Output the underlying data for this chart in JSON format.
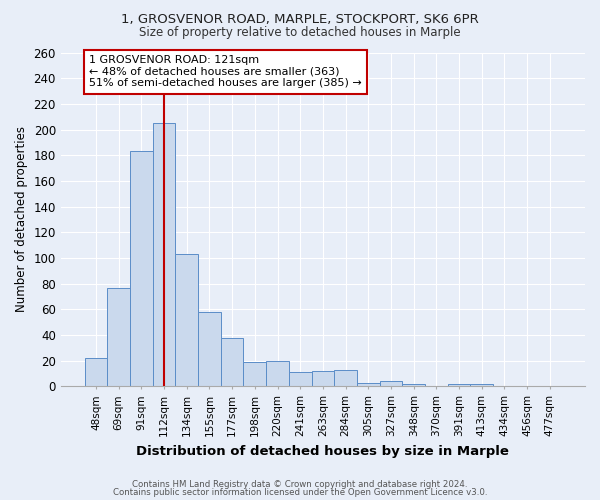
{
  "title_line1": "1, GROSVENOR ROAD, MARPLE, STOCKPORT, SK6 6PR",
  "title_line2": "Size of property relative to detached houses in Marple",
  "xlabel": "Distribution of detached houses by size in Marple",
  "ylabel": "Number of detached properties",
  "categories": [
    "48sqm",
    "69sqm",
    "91sqm",
    "112sqm",
    "134sqm",
    "155sqm",
    "177sqm",
    "198sqm",
    "220sqm",
    "241sqm",
    "263sqm",
    "284sqm",
    "305sqm",
    "327sqm",
    "348sqm",
    "370sqm",
    "391sqm",
    "413sqm",
    "434sqm",
    "456sqm",
    "477sqm"
  ],
  "values": [
    22,
    77,
    183,
    205,
    103,
    58,
    38,
    19,
    20,
    11,
    12,
    13,
    3,
    4,
    2,
    0,
    2,
    2,
    0,
    0,
    0
  ],
  "bar_color": "#cad9ed",
  "bar_edge_color": "#5b8dc8",
  "vline_x": 3,
  "vline_color": "#c00000",
  "annotation_text_line1": "1 GROSVENOR ROAD: 121sqm",
  "annotation_text_line2": "← 48% of detached houses are smaller (363)",
  "annotation_text_line3": "51% of semi-detached houses are larger (385) →",
  "annotation_box_edge_color": "#c00000",
  "annotation_box_bg": "#ffffff",
  "ylim": [
    0,
    260
  ],
  "yticks": [
    0,
    20,
    40,
    60,
    80,
    100,
    120,
    140,
    160,
    180,
    200,
    220,
    240,
    260
  ],
  "footer_line1": "Contains HM Land Registry data © Crown copyright and database right 2024.",
  "footer_line2": "Contains public sector information licensed under the Open Government Licence v3.0.",
  "bg_color": "#e8eef8",
  "plot_bg_color": "#e8eef8",
  "grid_color": "#ffffff"
}
